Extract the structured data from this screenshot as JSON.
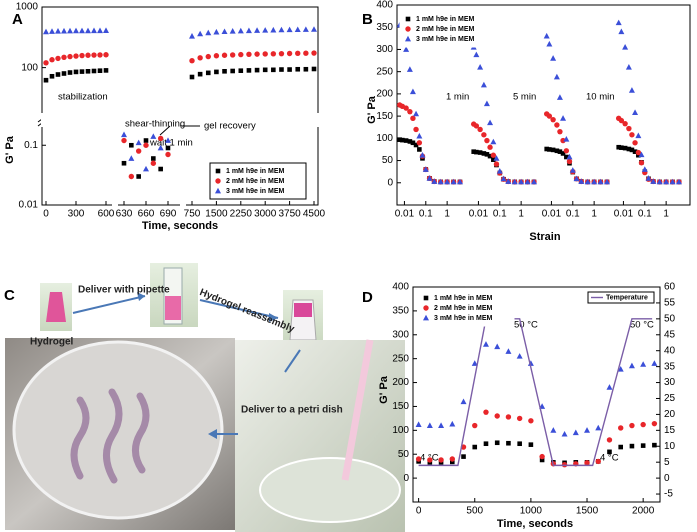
{
  "chart_data": [
    {
      "type": "scatter",
      "panel_label": "A",
      "xlabel": "Time, seconds",
      "ylabel": "G' Pa",
      "log_y": true,
      "legend": "lower right",
      "x_segments": [
        {
          "xlim": [
            0,
            600
          ],
          "xticks": [
            0,
            300,
            600
          ]
        },
        {
          "xlim": [
            630,
            690
          ],
          "xticks": [
            630,
            660,
            690
          ]
        },
        {
          "xlim": [
            750,
            4500
          ],
          "xticks": [
            750,
            1500,
            2250,
            3000,
            3750,
            4500
          ]
        }
      ],
      "y_segments": [
        {
          "ylim": [
            0.01,
            0.18
          ],
          "yticks": [
            0.01,
            0.1
          ]
        },
        {
          "ylim": [
            20,
            1000
          ],
          "yticks": [
            100,
            1000
          ]
        }
      ],
      "annotations": [
        "stabilization",
        "shear-thinning",
        "wait 1 min",
        "gel recovery"
      ],
      "x": [
        0,
        60,
        120,
        180,
        240,
        300,
        360,
        420,
        480,
        540,
        600,
        630,
        640,
        650,
        660,
        670,
        680,
        690,
        750,
        1000,
        1250,
        1500,
        1750,
        2000,
        2250,
        2500,
        2750,
        3000,
        3250,
        3500,
        3750,
        4000,
        4250,
        4500
      ],
      "series": [
        {
          "name": "1 mM h9e in MEM",
          "color": "#000000",
          "marker": "square",
          "values": [
            62,
            72,
            77,
            80,
            83,
            85,
            86,
            87,
            88,
            89,
            90,
            0.05,
            0.1,
            0.03,
            0.12,
            0.06,
            0.04,
            0.09,
            70,
            78,
            82,
            85,
            87,
            88,
            89,
            90,
            91,
            92,
            92,
            93,
            93,
            94,
            94,
            95
          ]
        },
        {
          "name": "2 mM h9e in MEM",
          "color": "#e8262a",
          "marker": "circle",
          "values": [
            120,
            135,
            142,
            148,
            152,
            155,
            158,
            160,
            161,
            162,
            163,
            0.12,
            0.03,
            0.08,
            0.1,
            0.05,
            0.13,
            0.07,
            130,
            145,
            152,
            157,
            160,
            162,
            164,
            166,
            167,
            168,
            169,
            170,
            171,
            172,
            173,
            174
          ]
        },
        {
          "name": "3 mM h9e in MEM",
          "color": "#3b4fd8",
          "marker": "triangle",
          "values": [
            390,
            395,
            398,
            400,
            402,
            404,
            405,
            405,
            406,
            407,
            408,
            0.15,
            0.06,
            0.11,
            0.04,
            0.14,
            0.09,
            0.12,
            330,
            360,
            375,
            385,
            392,
            398,
            402,
            406,
            410,
            413,
            416,
            419,
            421,
            423,
            425,
            427
          ]
        }
      ]
    },
    {
      "type": "scatter",
      "panel_label": "B",
      "xlabel": "Strain",
      "ylabel": "G' Pa",
      "log_x": true,
      "legend": "upper left",
      "ylim": [
        -50,
        400
      ],
      "yticks": [
        0,
        50,
        100,
        150,
        200,
        250,
        300,
        350,
        400
      ],
      "x_segments": [
        {
          "xlim": [
            0.005,
            4
          ],
          "xticks": [
            0.01,
            0.1,
            1
          ]
        },
        {
          "xlim": [
            0.005,
            4
          ],
          "xticks": [
            0.01,
            0.1,
            1
          ]
        },
        {
          "xlim": [
            0.005,
            4
          ],
          "xticks": [
            0.01,
            0.1,
            1
          ]
        },
        {
          "xlim": [
            0.005,
            4
          ],
          "xticks": [
            0.01,
            0.1,
            1
          ]
        }
      ],
      "annotations": [
        "1 min",
        "5 min",
        "10 min"
      ],
      "x": [
        0.006,
        0.008,
        0.012,
        0.018,
        0.025,
        0.035,
        0.05,
        0.07,
        0.1,
        0.15,
        0.25,
        0.5,
        1,
        2,
        4
      ],
      "series": [
        {
          "name": "1 mM h9e in MEM",
          "color": "#000000",
          "marker": "square",
          "values": [
            [
              97,
              96,
              95,
              93,
              90,
              85,
              75,
              55,
              30,
              10,
              3,
              2,
              2,
              2,
              2
            ],
            [
              70,
              69,
              68,
              66,
              64,
              60,
              52,
              40,
              22,
              8,
              3,
              2,
              2,
              2,
              2
            ],
            [
              76,
              75,
              74,
              72,
              70,
              66,
              58,
              44,
              24,
              9,
              3,
              2,
              2,
              2,
              2
            ],
            [
              80,
              79,
              78,
              76,
              74,
              70,
              62,
              46,
              25,
              9,
              3,
              2,
              2,
              2,
              2
            ]
          ]
        },
        {
          "name": "2 mM h9e in MEM",
          "color": "#e8262a",
          "marker": "circle",
          "values": [
            [
              175,
              172,
              168,
              160,
              145,
              120,
              90,
              60,
              30,
              10,
              3,
              2,
              2,
              2,
              2
            ],
            [
              132,
              128,
              120,
              108,
              95,
              80,
              62,
              42,
              22,
              8,
              3,
              2,
              2,
              2,
              2
            ],
            [
              155,
              150,
              142,
              130,
              115,
              95,
              72,
              48,
              25,
              9,
              3,
              2,
              2,
              2,
              2
            ],
            [
              145,
              140,
              133,
              122,
              108,
              90,
              68,
              45,
              23,
              8,
              3,
              2,
              2,
              2,
              2
            ]
          ]
        },
        {
          "name": "3 mM h9e in MEM",
          "color": "#3b4fd8",
          "marker": "triangle",
          "values": [
            [
              355,
              335,
              300,
              255,
              205,
              155,
              105,
              62,
              30,
              10,
              3,
              2,
              2,
              2,
              2
            ],
            [
              305,
              288,
              260,
              220,
              178,
              135,
              92,
              55,
              26,
              9,
              3,
              2,
              2,
              2,
              2
            ],
            [
              330,
              312,
              280,
              238,
              192,
              145,
              98,
              58,
              28,
              9,
              3,
              2,
              2,
              2,
              2
            ],
            [
              360,
              340,
              305,
              260,
              208,
              158,
              106,
              63,
              30,
              10,
              3,
              2,
              2,
              2,
              2
            ]
          ]
        }
      ]
    },
    {
      "type": "scatter",
      "panel_label": "D",
      "xlabel": "Time, seconds",
      "ylabel": "G' Pa",
      "legend": "upper left",
      "xlim": [
        -50,
        2150
      ],
      "xticks": [
        0,
        500,
        1000,
        1500,
        2000
      ],
      "ylim": [
        -50,
        400
      ],
      "yticks": [
        0,
        50,
        100,
        150,
        200,
        250,
        300,
        350,
        400
      ],
      "y2lim": [
        -7.5,
        60
      ],
      "y2ticks": [
        -5,
        0,
        5,
        10,
        15,
        20,
        25,
        30,
        35,
        40,
        45,
        50,
        55,
        60
      ],
      "annotations": [
        "50 °C",
        "4 °C",
        "4 °C",
        "50 °C"
      ],
      "x": [
        0,
        100,
        200,
        300,
        400,
        500,
        600,
        700,
        800,
        900,
        1000,
        1100,
        1200,
        1300,
        1400,
        1500,
        1600,
        1700,
        1800,
        1900,
        2000,
        2100
      ],
      "series": [
        {
          "name": "1 mM h9e in MEM",
          "color": "#000000",
          "marker": "square",
          "values": [
            35,
            33,
            33,
            34,
            45,
            65,
            72,
            74,
            73,
            72,
            70,
            38,
            33,
            32,
            33,
            33,
            35,
            55,
            65,
            67,
            68,
            69
          ]
        },
        {
          "name": "2 mM h9e in MEM",
          "color": "#e8262a",
          "marker": "circle",
          "values": [
            40,
            38,
            38,
            40,
            65,
            110,
            138,
            130,
            128,
            125,
            120,
            45,
            30,
            28,
            30,
            32,
            35,
            80,
            105,
            110,
            112,
            114
          ]
        },
        {
          "name": "3 mM h9e in MEM",
          "color": "#3b4fd8",
          "marker": "triangle",
          "values": [
            112,
            110,
            110,
            113,
            160,
            240,
            280,
            275,
            265,
            255,
            240,
            150,
            100,
            92,
            95,
            100,
            105,
            190,
            228,
            235,
            238,
            240
          ]
        },
        {
          "name": "Temperature",
          "color": "#7b5ea7",
          "axis": "y2",
          "marker": "line",
          "x": [
            0,
            350,
            600,
            900,
            1200,
            1550,
            1900,
            2080
          ],
          "values": [
            4,
            4,
            50,
            50,
            4,
            4,
            50,
            50
          ]
        }
      ]
    }
  ],
  "photo_panel": {
    "label": "C",
    "captions": [
      "Hydrogel",
      "Deliver with pipette",
      "Hydrogel reassembly",
      "Deliver to a petri dish"
    ]
  }
}
